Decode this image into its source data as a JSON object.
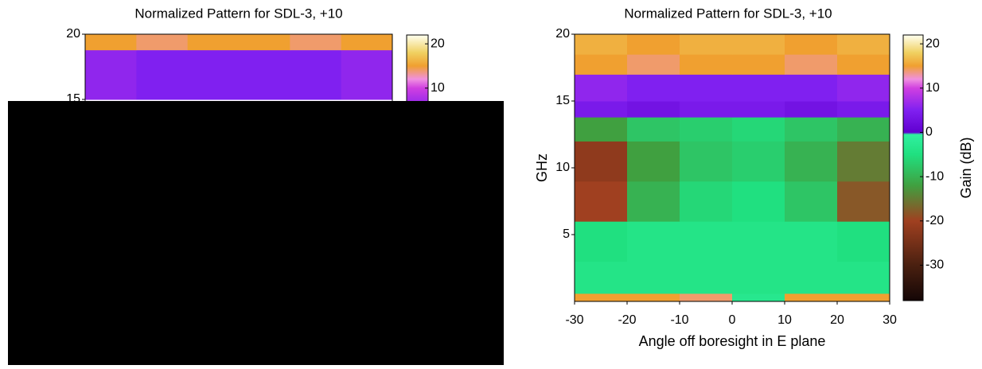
{
  "chart_data": [
    {
      "type": "heatmap",
      "title": "Normalized Pattern for SDL-3, +10",
      "xlim": [
        -30,
        30
      ],
      "ylim": [
        0,
        20
      ],
      "yticks": [
        15,
        20
      ],
      "x_edges": [
        -30,
        -20,
        -10,
        0,
        10,
        20,
        30
      ],
      "y_edges": [
        15,
        18.8,
        20
      ],
      "z": [
        [
          6,
          5,
          5,
          5,
          5,
          6
        ],
        [
          15,
          14,
          15,
          15,
          14,
          15
        ]
      ],
      "zlim": [
        -38,
        22
      ],
      "zticks": [
        10,
        20
      ],
      "colorscale": [
        [
          -38,
          "#140606"
        ],
        [
          -30,
          "#4a2010"
        ],
        [
          -20,
          "#a04020"
        ],
        [
          -12,
          "#40a040"
        ],
        [
          -5,
          "#20e080"
        ],
        [
          -0.5,
          "#30f0a0"
        ],
        [
          0,
          "#6000d0"
        ],
        [
          5,
          "#8020f0"
        ],
        [
          10,
          "#d040e0"
        ],
        [
          12,
          "#f090e0"
        ],
        [
          15,
          "#f0a030"
        ],
        [
          18,
          "#f0d060"
        ],
        [
          22,
          "#fffff0"
        ]
      ]
    },
    {
      "type": "heatmap",
      "title": "Normalized Pattern for SDL-3, +10",
      "xlabel": "Angle off boresight in E plane",
      "ylabel": "GHz",
      "zlabel": "Gain (dB)",
      "xlim": [
        -30,
        30
      ],
      "xticks": [
        -30,
        -20,
        -10,
        0,
        10,
        20,
        30
      ],
      "ylim": [
        0,
        20
      ],
      "yticks": [
        5,
        10,
        15,
        20
      ],
      "x_edges": [
        -30,
        -20,
        -10,
        0,
        10,
        20,
        30
      ],
      "y_edges": [
        0,
        0.6,
        3,
        6,
        9,
        12,
        13.8,
        15,
        17,
        18.5,
        20
      ],
      "z": [
        [
          15,
          15,
          14,
          -3,
          15,
          15
        ],
        [
          -4,
          -4,
          -4,
          -4,
          -4,
          -4
        ],
        [
          -5,
          -4,
          -4,
          -4,
          -4,
          -5
        ],
        [
          -20,
          -10,
          -6,
          -5,
          -8,
          -18
        ],
        [
          -22,
          -12,
          -8,
          -7,
          -10,
          -15
        ],
        [
          -12,
          -8,
          -7,
          -6,
          -8,
          -10
        ],
        [
          4,
          3,
          4,
          4,
          3,
          4
        ],
        [
          6,
          5,
          5,
          5,
          5,
          6
        ],
        [
          15,
          14,
          15,
          15,
          14,
          15
        ],
        [
          16,
          15,
          16,
          16,
          15,
          16
        ]
      ],
      "zlim": [
        -38,
        22
      ],
      "zticks": [
        -30,
        -20,
        -10,
        0,
        10,
        20
      ],
      "colorscale": [
        [
          -38,
          "#140606"
        ],
        [
          -30,
          "#4a2010"
        ],
        [
          -20,
          "#a04020"
        ],
        [
          -12,
          "#40a040"
        ],
        [
          -5,
          "#20e080"
        ],
        [
          -0.5,
          "#30f0a0"
        ],
        [
          0,
          "#6000d0"
        ],
        [
          5,
          "#8020f0"
        ],
        [
          10,
          "#d040e0"
        ],
        [
          12,
          "#f090e0"
        ],
        [
          15,
          "#f0a030"
        ],
        [
          18,
          "#f0d060"
        ],
        [
          22,
          "#fffff0"
        ]
      ]
    }
  ]
}
